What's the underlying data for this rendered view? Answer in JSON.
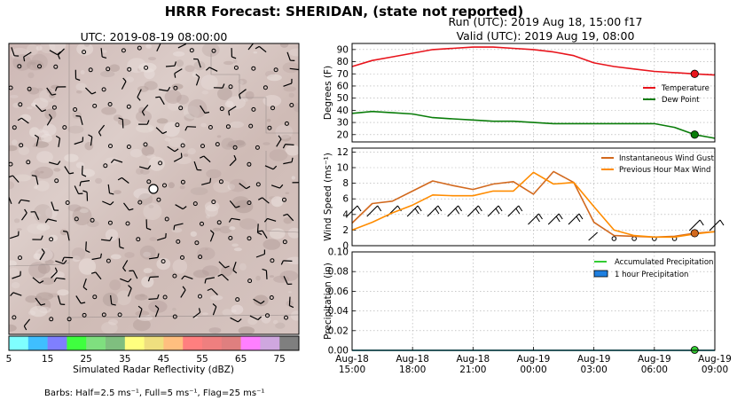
{
  "header": {
    "title": "HRRR Forecast: SHERIDAN, (state not reported)",
    "run": "Run (UTC): 2019 Aug 18, 15:00 f17",
    "valid": "Valid (UTC): 2019 Aug 19, 08:00"
  },
  "map": {
    "title": "UTC: 2019-08-19 08:00:00",
    "colorbar_label": "Simulated Radar Reflectivity (dBZ)",
    "colorbar_ticks": [
      "5",
      "15",
      "25",
      "35",
      "45",
      "55",
      "65",
      "75"
    ],
    "colorbar_colors": [
      "#7fffff",
      "#3fbfff",
      "#7f7fff",
      "#3fff3f",
      "#7fdf7f",
      "#7fbf7f",
      "#ffff7f",
      "#efdf7f",
      "#ffbf7f",
      "#ff7f7f",
      "#ef7f7f",
      "#df7f7f",
      "#ff7fff",
      "#cfa7df",
      "#7f7f7f"
    ],
    "barbs_note": "Barbs: Half=2.5 ms⁻¹, Full=5 ms⁻¹, Flag=25 ms⁻¹"
  },
  "chart_data": [
    {
      "type": "line",
      "x": [
        "2019-08-18 15:00",
        "2019-08-18 16:00",
        "2019-08-18 17:00",
        "2019-08-18 18:00",
        "2019-08-18 19:00",
        "2019-08-18 20:00",
        "2019-08-18 21:00",
        "2019-08-18 22:00",
        "2019-08-18 23:00",
        "2019-08-19 00:00",
        "2019-08-19 01:00",
        "2019-08-19 02:00",
        "2019-08-19 03:00",
        "2019-08-19 04:00",
        "2019-08-19 05:00",
        "2019-08-19 06:00",
        "2019-08-19 07:00",
        "2019-08-19 08:00",
        "2019-08-19 09:00"
      ],
      "series": [
        {
          "name": "Temperature",
          "color": "#e8141c",
          "values": [
            76,
            81,
            84,
            87,
            90,
            91,
            92,
            92,
            91,
            90,
            88,
            85,
            79,
            76,
            74,
            72,
            71,
            70,
            69
          ]
        },
        {
          "name": "Dew Point",
          "color": "#0a7d0a",
          "values": [
            37.5,
            39,
            38,
            37,
            34,
            33,
            32,
            31,
            31,
            30,
            29,
            29,
            29,
            29,
            29,
            29,
            26,
            20,
            17
          ]
        }
      ],
      "ylabel": "Degrees (F)",
      "yticks": [
        "20",
        "30",
        "40",
        "50",
        "60",
        "70",
        "80",
        "90"
      ],
      "ylim": [
        14,
        95
      ],
      "grid": true,
      "legend": "right",
      "highlight_x": "2019-08-19 08:00"
    },
    {
      "type": "line",
      "x": [
        "2019-08-18 15:00",
        "2019-08-18 16:00",
        "2019-08-18 17:00",
        "2019-08-18 18:00",
        "2019-08-18 19:00",
        "2019-08-18 20:00",
        "2019-08-18 21:00",
        "2019-08-18 22:00",
        "2019-08-18 23:00",
        "2019-08-19 00:00",
        "2019-08-19 01:00",
        "2019-08-19 02:00",
        "2019-08-19 03:00",
        "2019-08-19 04:00",
        "2019-08-19 05:00",
        "2019-08-19 06:00",
        "2019-08-19 07:00",
        "2019-08-19 08:00",
        "2019-08-19 09:00"
      ],
      "series": [
        {
          "name": "Instantaneous Wind Gust",
          "color": "#d2691e",
          "values": [
            2.9,
            5.4,
            5.7,
            7.0,
            8.3,
            7.7,
            7.2,
            7.9,
            8.2,
            6.6,
            9.5,
            8.1,
            3.0,
            1.3,
            1.2,
            1.1,
            1.2,
            1.6,
            1.8
          ]
        },
        {
          "name": "Previous Hour Max Wind",
          "color": "#ff8c00",
          "values": [
            2.0,
            3.0,
            4.2,
            5.2,
            6.5,
            6.4,
            6.4,
            7.0,
            7.0,
            9.4,
            7.9,
            8.1,
            5.0,
            2.0,
            1.3,
            1.1,
            1.1,
            1.5,
            1.8
          ]
        }
      ],
      "ylabel": "Wind Speed (ms⁻¹)",
      "yticks": [
        "0",
        "2",
        "4",
        "6",
        "8",
        "10",
        "12"
      ],
      "ylim": [
        0,
        12.5
      ],
      "grid": true,
      "legend": "top-right",
      "highlight_x": "2019-08-19 08:00"
    },
    {
      "type": "area",
      "x": [
        "2019-08-18 15:00",
        "2019-08-18 16:00",
        "2019-08-18 17:00",
        "2019-08-18 18:00",
        "2019-08-18 19:00",
        "2019-08-18 20:00",
        "2019-08-18 21:00",
        "2019-08-18 22:00",
        "2019-08-18 23:00",
        "2019-08-19 00:00",
        "2019-08-19 01:00",
        "2019-08-19 02:00",
        "2019-08-19 03:00",
        "2019-08-19 04:00",
        "2019-08-19 05:00",
        "2019-08-19 06:00",
        "2019-08-19 07:00",
        "2019-08-19 08:00",
        "2019-08-19 09:00"
      ],
      "series": [
        {
          "name": "Accumulated Precipitation",
          "color": "#33cc33",
          "values": [
            0,
            0,
            0,
            0,
            0,
            0,
            0,
            0,
            0,
            0,
            0,
            0,
            0,
            0,
            0,
            0,
            0,
            0,
            0
          ]
        },
        {
          "name": "1 hour Precipitation",
          "color": "#1e7fe0",
          "values": [
            0,
            0,
            0,
            0,
            0,
            0,
            0,
            0,
            0,
            0,
            0,
            0,
            0,
            0,
            0,
            0,
            0,
            0,
            0
          ]
        }
      ],
      "ylabel": "Precipitation (in)",
      "yticks": [
        "0.00",
        "0.02",
        "0.04",
        "0.06",
        "0.08",
        "0.10"
      ],
      "ylim": [
        0,
        0.1
      ],
      "grid": true,
      "legend": "top-right",
      "highlight_x": "2019-08-19 08:00"
    }
  ],
  "xaxis": {
    "tick_labels": [
      [
        "Aug-18",
        "15:00"
      ],
      [
        "Aug-18",
        "18:00"
      ],
      [
        "Aug-18",
        "21:00"
      ],
      [
        "Aug-19",
        "00:00"
      ],
      [
        "Aug-19",
        "03:00"
      ],
      [
        "Aug-19",
        "06:00"
      ],
      [
        "Aug-19",
        "09:00"
      ]
    ]
  }
}
